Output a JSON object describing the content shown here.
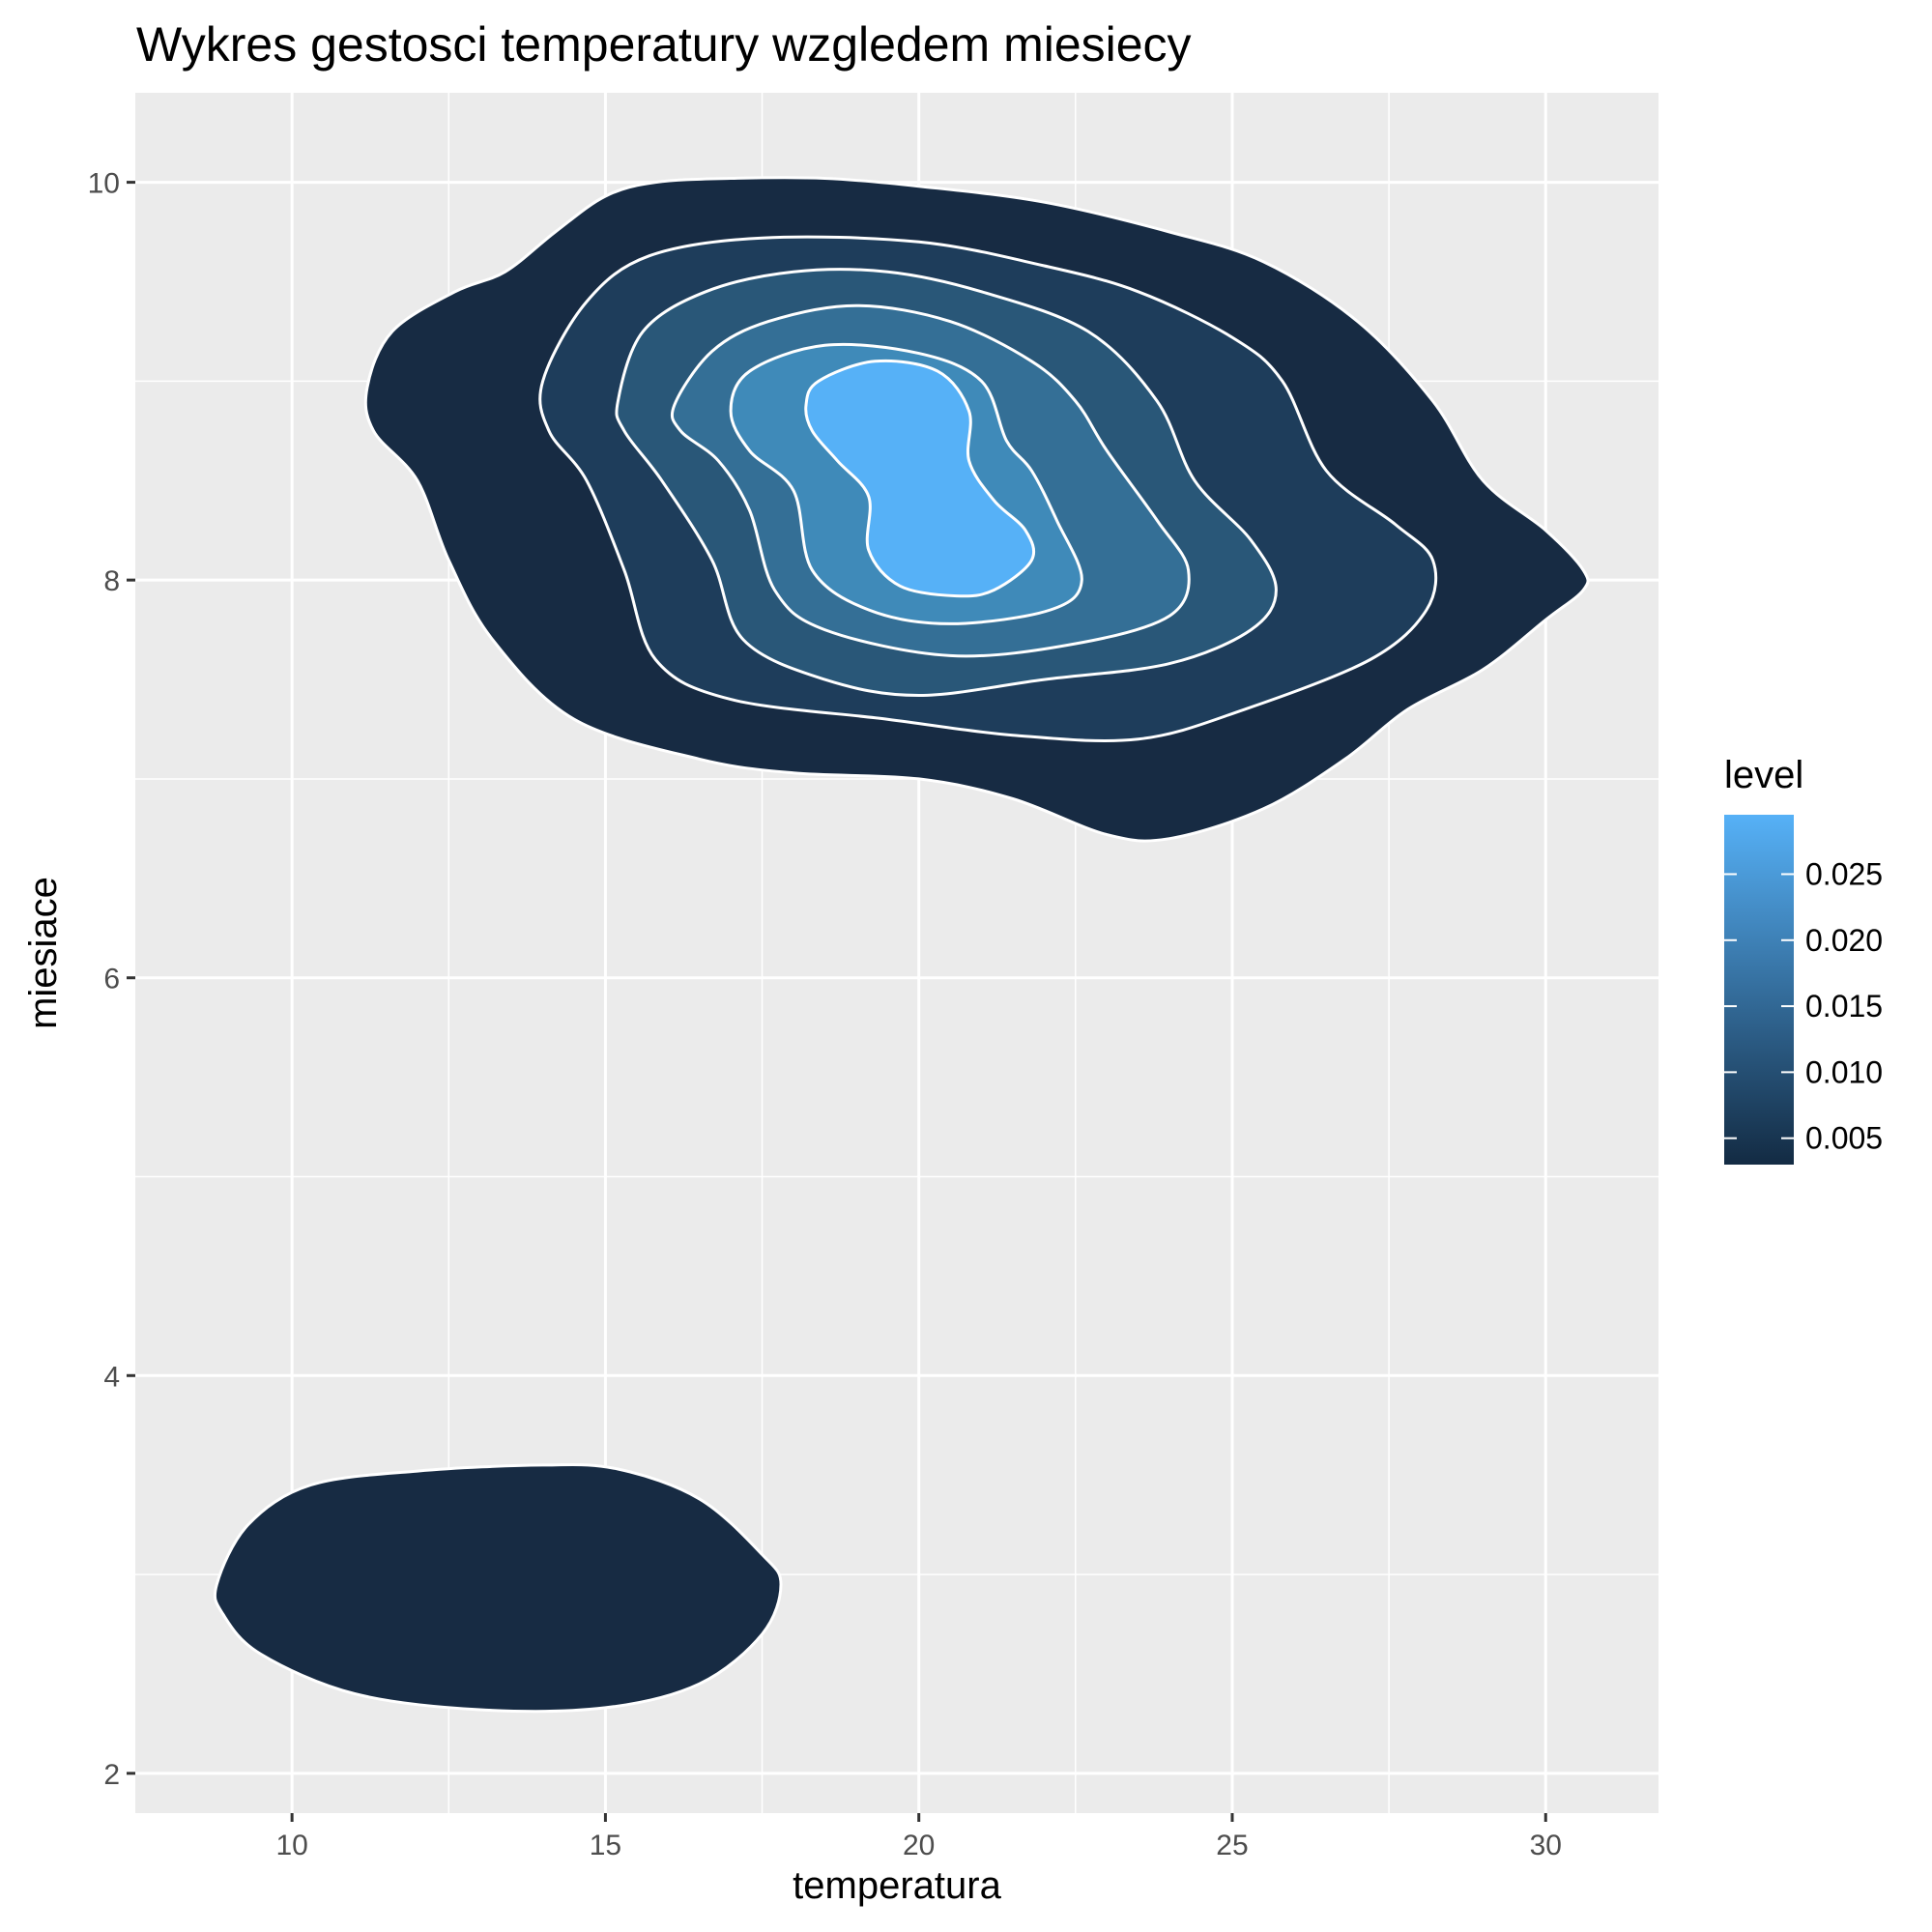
{
  "chart_data": {
    "type": "density_2d_filled",
    "title": "Wykres gestosci temperatury wzgledem miesiecy",
    "xlabel": "temperatura",
    "ylabel": "miesiace",
    "xlim": [
      7.5,
      31.8
    ],
    "ylim": [
      1.8,
      10.45
    ],
    "x_ticks": [
      10,
      15,
      20,
      25,
      30
    ],
    "x_tick_labels": [
      "10",
      "15",
      "20",
      "25",
      "30"
    ],
    "y_ticks": [
      2,
      4,
      6,
      8,
      10
    ],
    "y_tick_labels": [
      "2",
      "4",
      "6",
      "8",
      "10"
    ],
    "grid": true,
    "legend": {
      "title": "level",
      "position": "right",
      "range": [
        0.003,
        0.0295
      ],
      "breaks": [
        0.005,
        0.01,
        0.015,
        0.02,
        0.025
      ],
      "break_labels": [
        "0.005",
        "0.010",
        "0.015",
        "0.020",
        "0.025"
      ],
      "color_low": "#132B43",
      "color_high": "#56B1F7"
    },
    "colors": {
      "panel_background": "#EBEBEB",
      "grid": "#FFFFFF",
      "contour_line": "#FFFFFF"
    },
    "contours": [
      {
        "level": 0.005,
        "color": "#172B43",
        "points": [
          [
            11.2,
            8.97
          ],
          [
            11.6,
            9.25
          ],
          [
            12.6,
            9.45
          ],
          [
            13.4,
            9.55
          ],
          [
            14.2,
            9.75
          ],
          [
            15.0,
            9.93
          ],
          [
            15.8,
            10.0
          ],
          [
            17.0,
            10.02
          ],
          [
            18.5,
            10.02
          ],
          [
            20.0,
            9.98
          ],
          [
            22.0,
            9.9
          ],
          [
            24.0,
            9.75
          ],
          [
            25.5,
            9.6
          ],
          [
            27.0,
            9.3
          ],
          [
            28.2,
            8.9
          ],
          [
            29.0,
            8.5
          ],
          [
            30.0,
            8.25
          ],
          [
            30.6,
            8.05
          ],
          [
            30.6,
            7.95
          ],
          [
            30.0,
            7.8
          ],
          [
            29.0,
            7.55
          ],
          [
            27.8,
            7.35
          ],
          [
            26.8,
            7.1
          ],
          [
            25.5,
            6.85
          ],
          [
            24.0,
            6.7
          ],
          [
            23.0,
            6.72
          ],
          [
            21.5,
            6.9
          ],
          [
            20.0,
            7.0
          ],
          [
            18.0,
            7.03
          ],
          [
            16.5,
            7.1
          ],
          [
            14.5,
            7.3
          ],
          [
            13.2,
            7.7
          ],
          [
            12.5,
            8.1
          ],
          [
            12.0,
            8.5
          ],
          [
            11.3,
            8.75
          ]
        ]
      },
      {
        "level": 0.005,
        "color": "#172B43",
        "points": [
          [
            8.8,
            2.95
          ],
          [
            9.3,
            3.25
          ],
          [
            10.3,
            3.45
          ],
          [
            12.0,
            3.52
          ],
          [
            14.0,
            3.55
          ],
          [
            15.2,
            3.53
          ],
          [
            16.5,
            3.38
          ],
          [
            17.5,
            3.1
          ],
          [
            17.8,
            2.95
          ],
          [
            17.5,
            2.7
          ],
          [
            16.5,
            2.45
          ],
          [
            15.0,
            2.33
          ],
          [
            13.0,
            2.32
          ],
          [
            11.0,
            2.4
          ],
          [
            9.5,
            2.6
          ],
          [
            8.9,
            2.8
          ]
        ]
      },
      {
        "level": 0.01,
        "color": "#1E3D5B",
        "points": [
          [
            14.0,
            9.0
          ],
          [
            14.7,
            9.4
          ],
          [
            15.7,
            9.63
          ],
          [
            17.5,
            9.72
          ],
          [
            20.0,
            9.7
          ],
          [
            22.0,
            9.58
          ],
          [
            23.5,
            9.45
          ],
          [
            25.0,
            9.22
          ],
          [
            25.8,
            9.0
          ],
          [
            26.5,
            8.55
          ],
          [
            27.6,
            8.28
          ],
          [
            28.2,
            8.1
          ],
          [
            28.1,
            7.85
          ],
          [
            27.2,
            7.6
          ],
          [
            25.2,
            7.35
          ],
          [
            23.5,
            7.2
          ],
          [
            21.5,
            7.22
          ],
          [
            19.5,
            7.3
          ],
          [
            17.0,
            7.4
          ],
          [
            15.8,
            7.6
          ],
          [
            15.3,
            8.05
          ],
          [
            14.7,
            8.5
          ],
          [
            14.1,
            8.75
          ]
        ]
      },
      {
        "level": 0.015,
        "color": "#295778",
        "points": [
          [
            15.2,
            8.9
          ],
          [
            15.6,
            9.25
          ],
          [
            16.6,
            9.45
          ],
          [
            18.0,
            9.55
          ],
          [
            19.5,
            9.55
          ],
          [
            21.0,
            9.45
          ],
          [
            22.7,
            9.25
          ],
          [
            23.8,
            8.9
          ],
          [
            24.4,
            8.5
          ],
          [
            25.3,
            8.2
          ],
          [
            25.7,
            7.95
          ],
          [
            25.3,
            7.75
          ],
          [
            24.0,
            7.58
          ],
          [
            22.0,
            7.5
          ],
          [
            20.0,
            7.42
          ],
          [
            18.5,
            7.5
          ],
          [
            17.2,
            7.7
          ],
          [
            16.7,
            8.1
          ],
          [
            15.9,
            8.5
          ],
          [
            15.3,
            8.75
          ]
        ]
      },
      {
        "level": 0.02,
        "color": "#346F96",
        "points": [
          [
            16.1,
            8.88
          ],
          [
            16.7,
            9.15
          ],
          [
            17.6,
            9.3
          ],
          [
            19.0,
            9.38
          ],
          [
            20.5,
            9.3
          ],
          [
            21.8,
            9.1
          ],
          [
            22.5,
            8.9
          ],
          [
            23.0,
            8.65
          ],
          [
            23.8,
            8.3
          ],
          [
            24.3,
            8.05
          ],
          [
            24.0,
            7.82
          ],
          [
            22.5,
            7.68
          ],
          [
            20.5,
            7.62
          ],
          [
            18.5,
            7.75
          ],
          [
            17.7,
            7.95
          ],
          [
            17.3,
            8.35
          ],
          [
            16.8,
            8.6
          ],
          [
            16.2,
            8.75
          ]
        ]
      },
      {
        "level": 0.025,
        "color": "#3F8AB9",
        "points": [
          [
            17.0,
            8.85
          ],
          [
            17.3,
            9.05
          ],
          [
            18.5,
            9.18
          ],
          [
            20.0,
            9.14
          ],
          [
            21.0,
            9.0
          ],
          [
            21.4,
            8.7
          ],
          [
            21.8,
            8.55
          ],
          [
            22.2,
            8.3
          ],
          [
            22.6,
            8.0
          ],
          [
            22.1,
            7.85
          ],
          [
            20.5,
            7.78
          ],
          [
            19.2,
            7.85
          ],
          [
            18.3,
            8.05
          ],
          [
            18.0,
            8.45
          ],
          [
            17.3,
            8.65
          ]
        ]
      },
      {
        "level": 0.0295,
        "color": "#56B1F7",
        "points": [
          [
            18.2,
            8.88
          ],
          [
            18.4,
            9.0
          ],
          [
            19.3,
            9.1
          ],
          [
            20.3,
            9.05
          ],
          [
            20.8,
            8.85
          ],
          [
            20.8,
            8.6
          ],
          [
            21.2,
            8.4
          ],
          [
            21.7,
            8.25
          ],
          [
            21.8,
            8.1
          ],
          [
            21.2,
            7.95
          ],
          [
            20.6,
            7.92
          ],
          [
            19.7,
            7.97
          ],
          [
            19.2,
            8.15
          ],
          [
            19.2,
            8.42
          ],
          [
            18.7,
            8.6
          ],
          [
            18.3,
            8.75
          ]
        ]
      }
    ]
  }
}
